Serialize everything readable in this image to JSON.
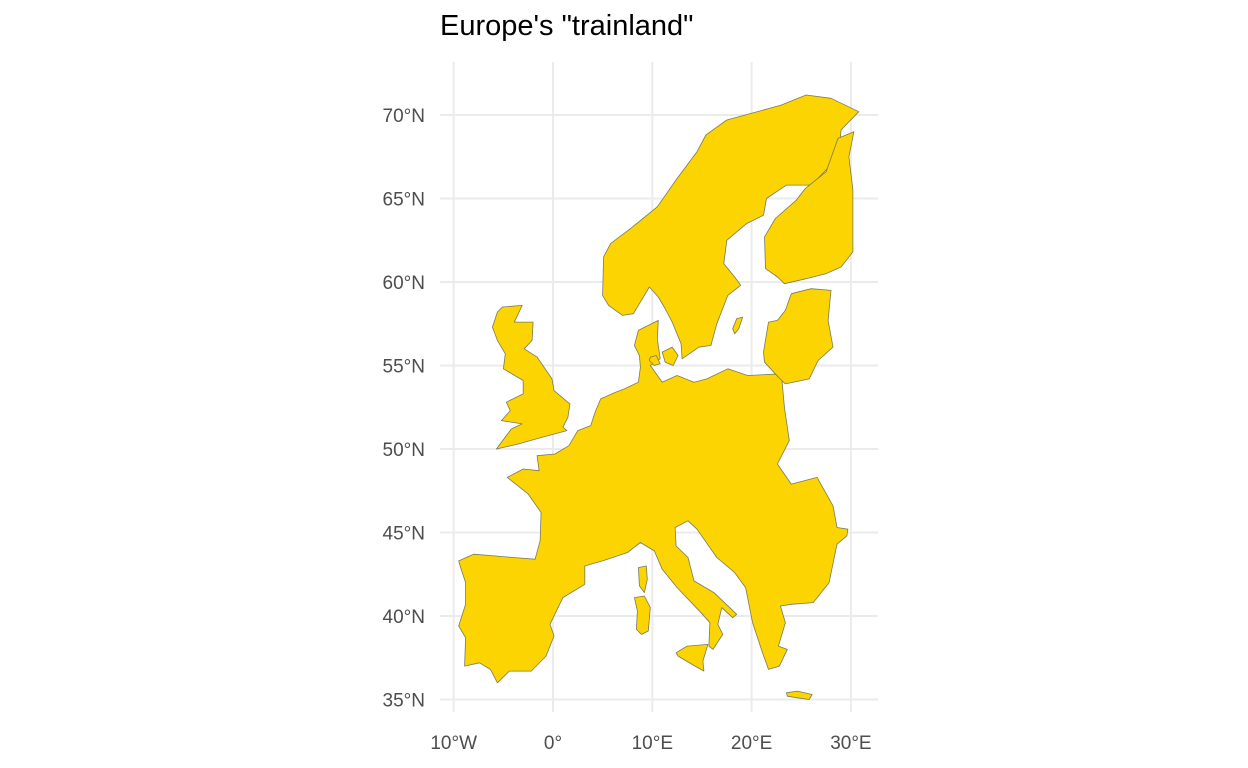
{
  "title": "Europe's \"trainland\"",
  "colors": {
    "land": "#fcd401",
    "grid": "#ebebeb",
    "text": "#4d4d4d",
    "background": "#ffffff"
  },
  "axes": {
    "x_ticks": [
      {
        "value": -10,
        "label": "10°W"
      },
      {
        "value": 0,
        "label": "0°"
      },
      {
        "value": 10,
        "label": "10°E"
      },
      {
        "value": 20,
        "label": "20°E"
      },
      {
        "value": 30,
        "label": "30°E"
      }
    ],
    "y_ticks": [
      {
        "value": 35,
        "label": "35°N"
      },
      {
        "value": 40,
        "label": "40°N"
      },
      {
        "value": 45,
        "label": "45°N"
      },
      {
        "value": 50,
        "label": "50°N"
      },
      {
        "value": 55,
        "label": "55°N"
      },
      {
        "value": 60,
        "label": "60°N"
      },
      {
        "value": 65,
        "label": "65°N"
      },
      {
        "value": 70,
        "label": "70°N"
      }
    ],
    "grid": true
  },
  "regions": [
    {
      "name": "mainland-europe",
      "coords": [
        [
          -9.5,
          43.3
        ],
        [
          -8,
          43.7
        ],
        [
          -4,
          43.5
        ],
        [
          -1.8,
          43.4
        ],
        [
          -1.3,
          44.5
        ],
        [
          -1.2,
          46.2
        ],
        [
          -2.5,
          47.3
        ],
        [
          -4.6,
          48.3
        ],
        [
          -3,
          48.8
        ],
        [
          -1.4,
          48.7
        ],
        [
          -1.6,
          49.6
        ],
        [
          0.2,
          49.7
        ],
        [
          1.6,
          50.2
        ],
        [
          2.5,
          51.1
        ],
        [
          3.8,
          51.4
        ],
        [
          4.3,
          52.3
        ],
        [
          4.8,
          53
        ],
        [
          6.3,
          53.4
        ],
        [
          7.2,
          53.6
        ],
        [
          8.6,
          54
        ],
        [
          8.8,
          54.9
        ],
        [
          8.7,
          55.6
        ],
        [
          8.2,
          56.2
        ],
        [
          8.6,
          57.1
        ],
        [
          10.6,
          57.7
        ],
        [
          10.5,
          56.6
        ],
        [
          10.8,
          55.4
        ],
        [
          9.8,
          55
        ],
        [
          11,
          54
        ],
        [
          12.5,
          54.4
        ],
        [
          14.2,
          54
        ],
        [
          15.5,
          54.2
        ],
        [
          17.6,
          54.8
        ],
        [
          19.6,
          54.4
        ],
        [
          23,
          54.5
        ],
        [
          23.3,
          52.5
        ],
        [
          23.8,
          50.5
        ],
        [
          22.6,
          49.1
        ],
        [
          24,
          47.9
        ],
        [
          26.6,
          48.3
        ],
        [
          28.2,
          46.6
        ],
        [
          28.6,
          45.3
        ],
        [
          29.7,
          45.2
        ],
        [
          29.6,
          44.8
        ],
        [
          28.6,
          44.3
        ],
        [
          27.8,
          42
        ],
        [
          26.2,
          40.8
        ],
        [
          24,
          40.7
        ],
        [
          22.9,
          40.6
        ],
        [
          23.4,
          39.6
        ],
        [
          22.7,
          38.2
        ],
        [
          23.6,
          38
        ],
        [
          22.8,
          37
        ],
        [
          21.7,
          36.8
        ],
        [
          21.1,
          37.8
        ],
        [
          20.1,
          39.6
        ],
        [
          19.4,
          41.7
        ],
        [
          18.3,
          42.6
        ],
        [
          16.5,
          43.5
        ],
        [
          14.5,
          45.2
        ],
        [
          13.6,
          45.7
        ],
        [
          12.3,
          45.3
        ],
        [
          12.4,
          44.2
        ],
        [
          13.6,
          43.5
        ],
        [
          14.2,
          42.1
        ],
        [
          16.2,
          41.4
        ],
        [
          18.5,
          40.1
        ],
        [
          18.1,
          39.9
        ],
        [
          17,
          40.5
        ],
        [
          16.6,
          39.5
        ],
        [
          17.1,
          38.9
        ],
        [
          16.1,
          38
        ],
        [
          15.7,
          38.2
        ],
        [
          15.8,
          39.6
        ],
        [
          14.9,
          40.2
        ],
        [
          12.5,
          41.7
        ],
        [
          11,
          42.8
        ],
        [
          10.2,
          43.9
        ],
        [
          8.8,
          44.4
        ],
        [
          7.5,
          43.8
        ],
        [
          5,
          43.3
        ],
        [
          3.2,
          43
        ],
        [
          3.2,
          41.9
        ],
        [
          1,
          41.1
        ],
        [
          -0.3,
          39.5
        ],
        [
          0.1,
          38.8
        ],
        [
          -0.7,
          37.6
        ],
        [
          -2.2,
          36.7
        ],
        [
          -4.4,
          36.7
        ],
        [
          -5.6,
          36
        ],
        [
          -6.3,
          36.8
        ],
        [
          -7.4,
          37.2
        ],
        [
          -8.9,
          37
        ],
        [
          -8.8,
          38.7
        ],
        [
          -9.5,
          39.4
        ],
        [
          -8.8,
          40.7
        ],
        [
          -8.8,
          42
        ],
        [
          -9.3,
          42.9
        ]
      ]
    },
    {
      "name": "great-britain",
      "coords": [
        [
          -5.1,
          58.5
        ],
        [
          -3.1,
          58.6
        ],
        [
          -3.9,
          57.6
        ],
        [
          -2,
          57.6
        ],
        [
          -2.1,
          56.5
        ],
        [
          -2.9,
          56
        ],
        [
          -1.6,
          55.5
        ],
        [
          -0.1,
          54.2
        ],
        [
          0.1,
          53.5
        ],
        [
          1.7,
          52.7
        ],
        [
          1.5,
          51.9
        ],
        [
          1,
          51.3
        ],
        [
          1.4,
          51.1
        ],
        [
          -1.1,
          50.7
        ],
        [
          -3.5,
          50.3
        ],
        [
          -5.7,
          50
        ],
        [
          -4.2,
          51.2
        ],
        [
          -3.1,
          51.5
        ],
        [
          -5.2,
          51.7
        ],
        [
          -4.3,
          52.3
        ],
        [
          -4.7,
          52.8
        ],
        [
          -3,
          53.3
        ],
        [
          -3,
          54.1
        ],
        [
          -5,
          54.8
        ],
        [
          -4.8,
          55.7
        ],
        [
          -5.6,
          56.5
        ],
        [
          -6.1,
          57.3
        ],
        [
          -5.6,
          58.2
        ]
      ]
    },
    {
      "name": "sweden-norway",
      "coords": [
        [
          5,
          59.2
        ],
        [
          5.1,
          61.5
        ],
        [
          5.8,
          62.3
        ],
        [
          7.8,
          63.2
        ],
        [
          10.5,
          64.5
        ],
        [
          12.5,
          66.2
        ],
        [
          14.5,
          67.8
        ],
        [
          15.4,
          68.8
        ],
        [
          17.5,
          69.7
        ],
        [
          20,
          70.1
        ],
        [
          23,
          70.6
        ],
        [
          25.5,
          71.2
        ],
        [
          28,
          71
        ],
        [
          30.8,
          70.2
        ],
        [
          29,
          69.1
        ],
        [
          28.8,
          67.5
        ],
        [
          26,
          65.8
        ],
        [
          23.5,
          65.8
        ],
        [
          21.5,
          65
        ],
        [
          21.2,
          64
        ],
        [
          19.5,
          63.5
        ],
        [
          17.5,
          62.5
        ],
        [
          17.2,
          61.1
        ],
        [
          18.3,
          60.3
        ],
        [
          18.9,
          59.8
        ],
        [
          17.6,
          59.2
        ],
        [
          16.5,
          57.5
        ],
        [
          15.9,
          56.2
        ],
        [
          14.7,
          56.1
        ],
        [
          13,
          55.4
        ],
        [
          12.9,
          56.3
        ],
        [
          12,
          57.6
        ],
        [
          11.2,
          58.5
        ],
        [
          10.6,
          59.1
        ],
        [
          9.7,
          59.7
        ],
        [
          8.1,
          58.1
        ],
        [
          7,
          58
        ],
        [
          5.6,
          58.6
        ]
      ]
    },
    {
      "name": "finland",
      "coords": [
        [
          21.4,
          60.8
        ],
        [
          21.3,
          62.7
        ],
        [
          22.4,
          63.8
        ],
        [
          24.5,
          64.9
        ],
        [
          25.4,
          65.6
        ],
        [
          27.5,
          66.6
        ],
        [
          28.7,
          68.6
        ],
        [
          30.3,
          69
        ],
        [
          29.8,
          67.5
        ],
        [
          30.2,
          65.5
        ],
        [
          30.2,
          63.5
        ],
        [
          30.2,
          61.8
        ],
        [
          29,
          60.9
        ],
        [
          27.5,
          60.5
        ],
        [
          25.5,
          60.2
        ],
        [
          23.3,
          59.9
        ],
        [
          22.6,
          60.3
        ]
      ]
    },
    {
      "name": "baltic-states",
      "coords": [
        [
          21.2,
          55.8
        ],
        [
          21.7,
          57.6
        ],
        [
          22.6,
          57.7
        ],
        [
          23.4,
          58.3
        ],
        [
          24,
          59.3
        ],
        [
          26,
          59.6
        ],
        [
          28,
          59.5
        ],
        [
          27.7,
          57.7
        ],
        [
          28.2,
          56.1
        ],
        [
          26.7,
          55.3
        ],
        [
          25.8,
          54.2
        ],
        [
          23.4,
          53.9
        ],
        [
          22.7,
          54.3
        ],
        [
          21.3,
          55.2
        ]
      ]
    },
    {
      "name": "sicily",
      "coords": [
        [
          12.4,
          37.8
        ],
        [
          13.5,
          38.2
        ],
        [
          15.6,
          38.3
        ],
        [
          15.1,
          37.3
        ],
        [
          15.2,
          36.7
        ],
        [
          14.3,
          37
        ],
        [
          12.6,
          37.6
        ]
      ]
    },
    {
      "name": "sardinia",
      "coords": [
        [
          8.2,
          41.1
        ],
        [
          9.2,
          41.2
        ],
        [
          9.8,
          40.5
        ],
        [
          9.6,
          39.1
        ],
        [
          8.9,
          38.9
        ],
        [
          8.4,
          39.2
        ],
        [
          8.5,
          40.3
        ]
      ]
    },
    {
      "name": "corsica",
      "coords": [
        [
          8.6,
          42.9
        ],
        [
          9.4,
          43
        ],
        [
          9.5,
          42.2
        ],
        [
          9.2,
          41.4
        ],
        [
          8.7,
          41.8
        ]
      ]
    },
    {
      "name": "crete",
      "coords": [
        [
          23.5,
          35.4
        ],
        [
          24.6,
          35.5
        ],
        [
          26.1,
          35.3
        ],
        [
          25.8,
          35
        ],
        [
          24.6,
          35.1
        ],
        [
          23.6,
          35.2
        ]
      ]
    },
    {
      "name": "zealand",
      "coords": [
        [
          11,
          55.8
        ],
        [
          12,
          56.1
        ],
        [
          12.6,
          55.6
        ],
        [
          12.1,
          55
        ],
        [
          11.3,
          55.2
        ]
      ]
    },
    {
      "name": "funen",
      "coords": [
        [
          9.8,
          55.5
        ],
        [
          10.4,
          55.6
        ],
        [
          10.8,
          55.1
        ],
        [
          10.2,
          55
        ],
        [
          9.7,
          55.3
        ]
      ]
    },
    {
      "name": "gotland",
      "coords": [
        [
          18.1,
          57.2
        ],
        [
          18.5,
          57.8
        ],
        [
          19.1,
          57.9
        ],
        [
          18.7,
          57.2
        ],
        [
          18.3,
          56.9
        ]
      ]
    }
  ]
}
